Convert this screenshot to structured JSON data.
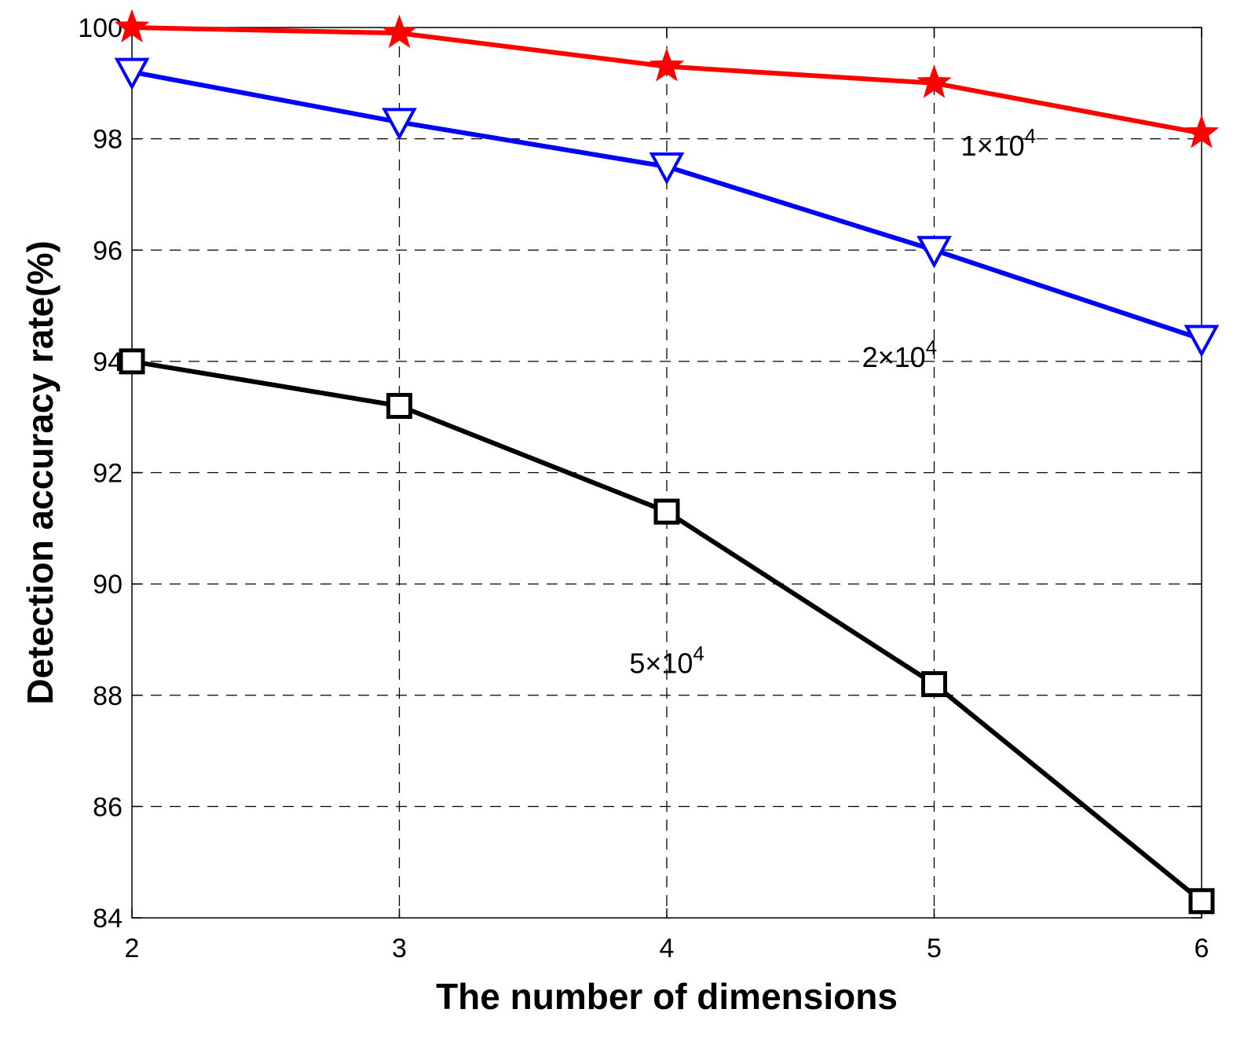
{
  "chart_data": {
    "type": "line",
    "xlabel": "The number of dimensions",
    "ylabel": "Detection accuracy rate(%)",
    "xlim": [
      2,
      6
    ],
    "ylim": [
      84,
      100
    ],
    "xticks": [
      2,
      3,
      4,
      5,
      6
    ],
    "yticks": [
      84,
      86,
      88,
      90,
      92,
      94,
      96,
      98,
      100
    ],
    "grid": true,
    "x": [
      2,
      3,
      4,
      5,
      6
    ],
    "series": [
      {
        "name": "1×10^4",
        "color": "#ff0000",
        "marker": "star",
        "values": [
          100,
          99.9,
          99.3,
          99.0,
          98.1
        ]
      },
      {
        "name": "2×10^4",
        "color": "#0000ff",
        "marker": "triangle-down",
        "values": [
          99.2,
          98.3,
          97.5,
          96.0,
          94.4
        ]
      },
      {
        "name": "5×10^4",
        "color": "#000000",
        "marker": "square",
        "values": [
          94.0,
          93.2,
          91.3,
          88.2,
          84.3
        ]
      }
    ],
    "annotations": [
      {
        "base": "1×10",
        "exp": "4",
        "x": 5.1,
        "y": 97.7
      },
      {
        "base": "2×10",
        "exp": "4",
        "x": 4.73,
        "y": 93.9
      },
      {
        "base": "5×10",
        "exp": "4",
        "x": 3.86,
        "y": 88.4
      }
    ]
  }
}
